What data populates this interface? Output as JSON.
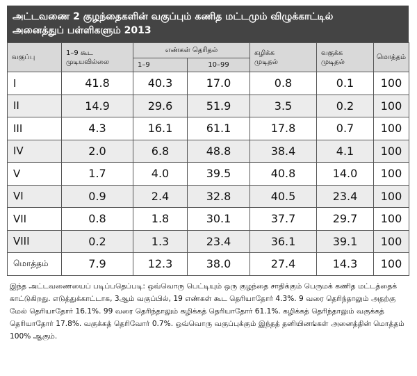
{
  "title": {
    "line1": "அட்டவணை 2 குழந்தைகளின் வகுப்பும் கணித மட்டமும் விழுக்காட்டில்",
    "line2": "அனைத்துப் பள்ளிகளும் 2013"
  },
  "headers": {
    "class": "வகுப்பு",
    "cannot_1_9_line1": "1–9 கூட",
    "cannot_1_9_line2": "முடியவில்லை",
    "numbers_known": "எண்கள் தெரிதல்",
    "range_1_9": "1–9",
    "range_10_99": "10–99",
    "subtract_line1": "கழிக்க",
    "subtract_line2": "முடிதல்",
    "divide_line1": "வகுக்க",
    "divide_line2": "முடிதல்",
    "total": "மொத்தம்"
  },
  "rows": [
    {
      "cls": "I",
      "c1": "41.8",
      "c2": "40.3",
      "c3": "17.0",
      "c4": "0.8",
      "c5": "0.1",
      "c6": "100"
    },
    {
      "cls": "II",
      "c1": "14.9",
      "c2": "29.6",
      "c3": "51.9",
      "c4": "3.5",
      "c5": "0.2",
      "c6": "100"
    },
    {
      "cls": "III",
      "c1": "4.3",
      "c2": "16.1",
      "c3": "61.1",
      "c4": "17.8",
      "c5": "0.7",
      "c6": "100"
    },
    {
      "cls": "IV",
      "c1": "2.0",
      "c2": "6.8",
      "c3": "48.8",
      "c4": "38.4",
      "c5": "4.1",
      "c6": "100"
    },
    {
      "cls": "V",
      "c1": "1.7",
      "c2": "4.0",
      "c3": "39.5",
      "c4": "40.8",
      "c5": "14.0",
      "c6": "100"
    },
    {
      "cls": "VI",
      "c1": "0.9",
      "c2": "2.4",
      "c3": "32.8",
      "c4": "40.5",
      "c5": "23.4",
      "c6": "100"
    },
    {
      "cls": "VII",
      "c1": "0.8",
      "c2": "1.8",
      "c3": "30.1",
      "c4": "37.7",
      "c5": "29.7",
      "c6": "100"
    },
    {
      "cls": "VIII",
      "c1": "0.2",
      "c2": "1.3",
      "c3": "23.4",
      "c4": "36.1",
      "c5": "39.1",
      "c6": "100"
    },
    {
      "cls": "மொத்தம்",
      "c1": "7.9",
      "c2": "12.3",
      "c3": "38.0",
      "c4": "27.4",
      "c5": "14.3",
      "c6": "100"
    }
  ],
  "note": "இந்த அட்டவணையைப் படிப்பதெப்படி: ஒவ்வொரு பெட்டியும் ஒரு குழந்தை சாதிக்கும் பெருமக் கணித மட்டத்தைக் காட்டுகிறது. எடுத்துக்காட்டாக, 3ஆம் வகுப்பில், 19 எண்கள் கூட தெரியாதோர் 4.3%. 9 வரை தெரிந்தாலும் அதற்கு மேல் தெரியாதோர் 16.1%. 99 வரை தெரிந்தாலும் கழிக்கத் தெரியாதோர் 61.1%. கழிக்கத் தெரிந்தாலும் வகுக்கத் தெரியாதோர் 17.8%. வகுக்கத் தெரிவோர் 0.7%. ஒவ்வொரு வகுப்புக்கும் இந்தத் தனியினங்கள் அனைத்தின் மொத்தம் 100% ஆகும்."
}
